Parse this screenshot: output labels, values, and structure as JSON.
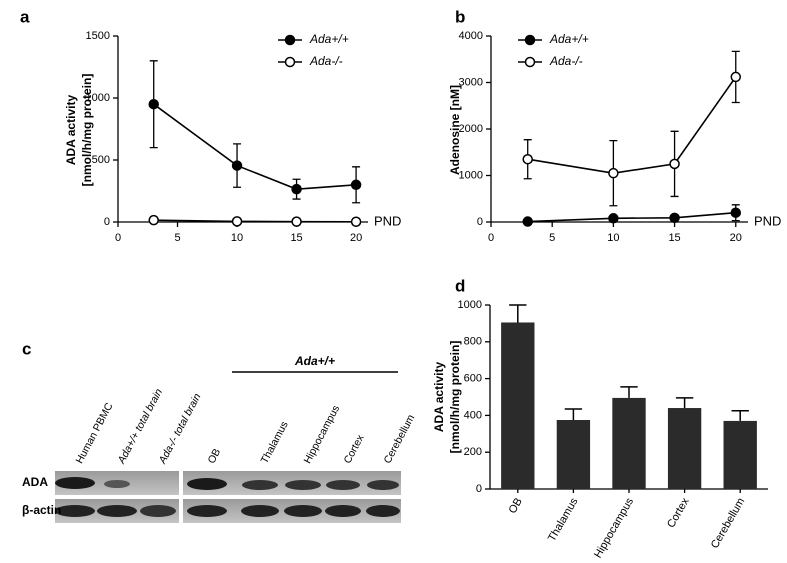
{
  "chart_data": [
    {
      "type": "line",
      "panel": "a",
      "ylabel": [
        "ADA activity",
        "[nmol/h/mg protein]"
      ],
      "xlabel": "PND",
      "xlim": [
        0,
        21
      ],
      "xticks": [
        0,
        5,
        10,
        15,
        20
      ],
      "ylim": [
        0,
        1500
      ],
      "yticks": [
        0,
        500,
        1000,
        1500
      ],
      "x": [
        3,
        10,
        15,
        20
      ],
      "series": [
        {
          "name": "Ada+/+",
          "color": "#000000",
          "filled": true,
          "values": [
            950,
            455,
            265,
            300
          ],
          "errors": [
            350,
            175,
            80,
            145
          ]
        },
        {
          "name": "Ada-/-",
          "color": "#000000",
          "filled": false,
          "values": [
            15,
            5,
            3,
            2
          ],
          "errors": [
            20,
            5,
            3,
            3
          ]
        }
      ]
    },
    {
      "type": "line",
      "panel": "b",
      "ylabel": [
        "Adenosine [nM]"
      ],
      "xlabel": "PND",
      "xlim": [
        0,
        21
      ],
      "xticks": [
        0,
        5,
        10,
        15,
        20
      ],
      "ylim": [
        0,
        4000
      ],
      "yticks": [
        0,
        1000,
        2000,
        3000,
        4000
      ],
      "x": [
        3,
        10,
        15,
        20
      ],
      "series": [
        {
          "name": "Ada+/+",
          "color": "#000000",
          "filled": true,
          "values": [
            10,
            80,
            90,
            200
          ],
          "errors": [
            10,
            30,
            30,
            170
          ]
        },
        {
          "name": "Ada-/-",
          "color": "#000000",
          "filled": false,
          "values": [
            1350,
            1050,
            1250,
            3120
          ],
          "errors": [
            420,
            700,
            700,
            550
          ]
        }
      ]
    },
    {
      "type": "bar",
      "panel": "d",
      "ylabel": [
        "ADA activity",
        "[nmol/h/mg protein]"
      ],
      "categories": [
        "OB",
        "Thalamus",
        "Hippocampus",
        "Cortex",
        "Cerebellum"
      ],
      "values": [
        905,
        375,
        495,
        440,
        370
      ],
      "errors": [
        95,
        60,
        60,
        55,
        55
      ],
      "color": "#2b2b2b",
      "ylim": [
        0,
        1000
      ],
      "yticks": [
        0,
        200,
        400,
        600,
        800,
        1000
      ]
    }
  ],
  "blot": {
    "panel": "c",
    "group": "Ada+/+",
    "lanes": [
      "Human PBMC",
      "Ada+/+ total brain",
      "Ada-/- total brain",
      "OB",
      "Thalamus",
      "Hippocampus",
      "Cortex",
      "Cerebellum"
    ],
    "rows": [
      "ADA",
      "β-actin"
    ]
  }
}
